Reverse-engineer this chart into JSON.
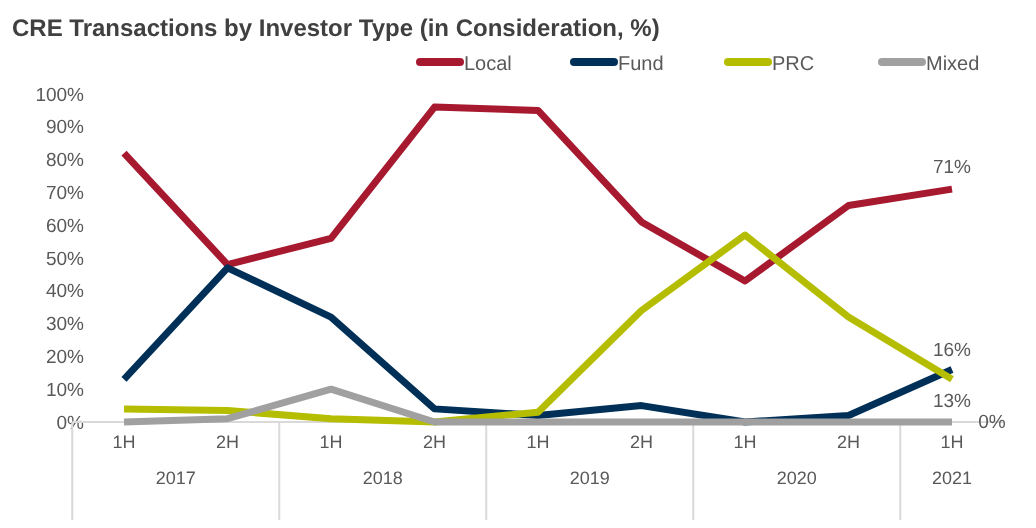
{
  "chart_data": {
    "type": "line",
    "title": "CRE Transactions by Investor Type (in Consideration, %)",
    "categories": [
      "1H",
      "2H",
      "1H",
      "2H",
      "1H",
      "2H",
      "1H",
      "2H",
      "1H"
    ],
    "annotations": [
      "2017",
      "2018",
      "2019",
      "2020",
      "2021"
    ],
    "series": [
      {
        "name": "Local",
        "color": "#a6192e",
        "values": [
          82,
          48,
          56,
          96,
          95,
          61,
          43,
          66,
          71
        ],
        "value_labels": [
          null,
          null,
          null,
          null,
          null,
          null,
          null,
          null,
          "71%"
        ]
      },
      {
        "name": "Fund",
        "color": "#003057",
        "values": [
          13,
          47,
          32,
          4,
          2,
          5,
          0,
          2,
          16
        ],
        "value_labels": [
          null,
          null,
          null,
          null,
          null,
          null,
          null,
          null,
          "16%"
        ]
      },
      {
        "name": "PRC",
        "color": "#b5bd00",
        "values": [
          4,
          3.5,
          1,
          0,
          3,
          34,
          57,
          32,
          13
        ],
        "value_labels": [
          null,
          null,
          null,
          null,
          null,
          null,
          null,
          null,
          "13%"
        ]
      },
      {
        "name": "Mixed",
        "color": "#a0a0a0",
        "values": [
          0,
          1,
          10,
          0,
          0,
          0,
          0,
          0,
          0
        ],
        "value_labels": [
          null,
          null,
          null,
          null,
          null,
          null,
          null,
          null,
          "0%"
        ]
      }
    ],
    "ylim": [
      0,
      100
    ],
    "yticks": [
      {
        "value": 0,
        "label": "0%"
      },
      {
        "value": 10,
        "label": "10%"
      },
      {
        "value": 20,
        "label": "20%"
      },
      {
        "value": 30,
        "label": "30%"
      },
      {
        "value": 40,
        "label": "40%"
      },
      {
        "value": 50,
        "label": "50%"
      },
      {
        "value": 60,
        "label": "60%"
      },
      {
        "value": 70,
        "label": "70%"
      },
      {
        "value": 80,
        "label": "80%"
      },
      {
        "value": 90,
        "label": "90%"
      },
      {
        "value": 100,
        "label": "100%"
      }
    ],
    "grid": false,
    "legend": "top right",
    "marker": "none",
    "line_style": "solid"
  }
}
